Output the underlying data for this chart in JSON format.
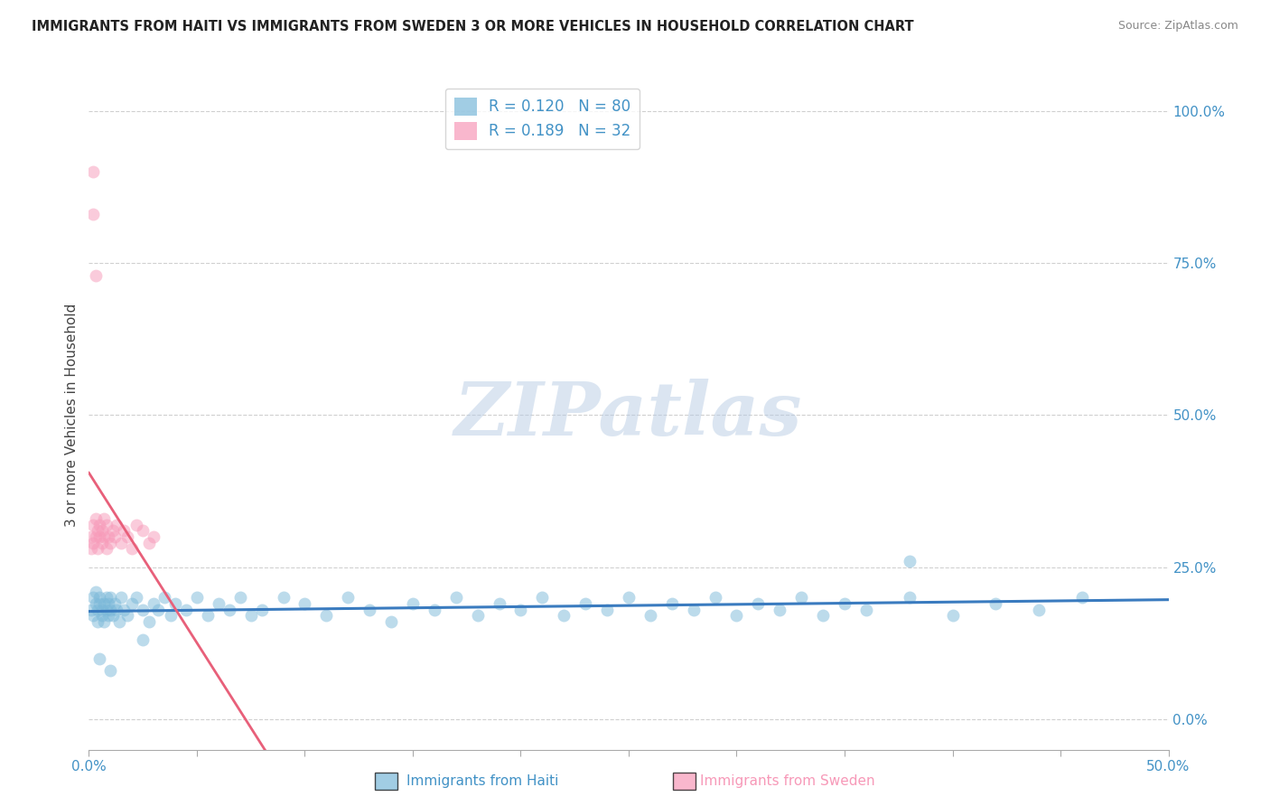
{
  "title": "IMMIGRANTS FROM HAITI VS IMMIGRANTS FROM SWEDEN 3 OR MORE VEHICLES IN HOUSEHOLD CORRELATION CHART",
  "source": "Source: ZipAtlas.com",
  "ylabel": "3 or more Vehicles in Household",
  "xlim": [
    0,
    0.5
  ],
  "ylim": [
    -0.05,
    1.05
  ],
  "xticks": [
    0.0,
    0.05,
    0.1,
    0.15,
    0.2,
    0.25,
    0.3,
    0.35,
    0.4,
    0.45,
    0.5
  ],
  "xticklabels_show": [
    "0.0%",
    "",
    "",
    "",
    "",
    "",
    "",
    "",
    "",
    "",
    "50.0%"
  ],
  "yticks": [
    0.0,
    0.25,
    0.5,
    0.75,
    1.0
  ],
  "yticklabels": [
    "0.0%",
    "25.0%",
    "50.0%",
    "75.0%",
    "100.0%"
  ],
  "haiti_color": "#7ab8d9",
  "sweden_color": "#f799b8",
  "haiti_R": 0.12,
  "haiti_N": 80,
  "sweden_R": 0.189,
  "sweden_N": 32,
  "haiti_line_color": "#3a7bbf",
  "sweden_line_color": "#e8607a",
  "watermark": "ZIPatlas",
  "tick_color": "#4292c6",
  "grid_color": "#d0d0d0",
  "legend_label_color": "#4292c6",
  "haiti_x": [
    0.001,
    0.002,
    0.002,
    0.003,
    0.003,
    0.004,
    0.004,
    0.005,
    0.005,
    0.006,
    0.006,
    0.007,
    0.007,
    0.008,
    0.008,
    0.009,
    0.009,
    0.01,
    0.01,
    0.011,
    0.012,
    0.013,
    0.014,
    0.015,
    0.016,
    0.018,
    0.02,
    0.022,
    0.025,
    0.028,
    0.03,
    0.032,
    0.035,
    0.038,
    0.04,
    0.045,
    0.05,
    0.055,
    0.06,
    0.065,
    0.07,
    0.075,
    0.08,
    0.09,
    0.1,
    0.11,
    0.12,
    0.13,
    0.14,
    0.15,
    0.16,
    0.17,
    0.18,
    0.19,
    0.2,
    0.21,
    0.22,
    0.23,
    0.24,
    0.25,
    0.26,
    0.27,
    0.28,
    0.29,
    0.3,
    0.31,
    0.32,
    0.33,
    0.34,
    0.35,
    0.36,
    0.38,
    0.4,
    0.42,
    0.44,
    0.46,
    0.005,
    0.01,
    0.025,
    0.38
  ],
  "haiti_y": [
    0.18,
    0.17,
    0.2,
    0.19,
    0.21,
    0.18,
    0.16,
    0.19,
    0.2,
    0.17,
    0.18,
    0.16,
    0.19,
    0.18,
    0.2,
    0.17,
    0.19,
    0.18,
    0.2,
    0.17,
    0.19,
    0.18,
    0.16,
    0.2,
    0.18,
    0.17,
    0.19,
    0.2,
    0.18,
    0.16,
    0.19,
    0.18,
    0.2,
    0.17,
    0.19,
    0.18,
    0.2,
    0.17,
    0.19,
    0.18,
    0.2,
    0.17,
    0.18,
    0.2,
    0.19,
    0.17,
    0.2,
    0.18,
    0.16,
    0.19,
    0.18,
    0.2,
    0.17,
    0.19,
    0.18,
    0.2,
    0.17,
    0.19,
    0.18,
    0.2,
    0.17,
    0.19,
    0.18,
    0.2,
    0.17,
    0.19,
    0.18,
    0.2,
    0.17,
    0.19,
    0.18,
    0.2,
    0.17,
    0.19,
    0.18,
    0.2,
    0.1,
    0.08,
    0.13,
    0.26
  ],
  "sweden_x": [
    0.001,
    0.001,
    0.002,
    0.002,
    0.003,
    0.003,
    0.004,
    0.004,
    0.005,
    0.005,
    0.006,
    0.006,
    0.007,
    0.007,
    0.008,
    0.008,
    0.009,
    0.01,
    0.011,
    0.012,
    0.013,
    0.015,
    0.016,
    0.018,
    0.02,
    0.022,
    0.025,
    0.028,
    0.03,
    0.002,
    0.002,
    0.003
  ],
  "sweden_y": [
    0.28,
    0.3,
    0.32,
    0.29,
    0.3,
    0.33,
    0.31,
    0.28,
    0.3,
    0.32,
    0.29,
    0.31,
    0.33,
    0.3,
    0.28,
    0.32,
    0.3,
    0.29,
    0.31,
    0.3,
    0.32,
    0.29,
    0.31,
    0.3,
    0.28,
    0.32,
    0.31,
    0.29,
    0.3,
    0.9,
    0.83,
    0.73
  ]
}
